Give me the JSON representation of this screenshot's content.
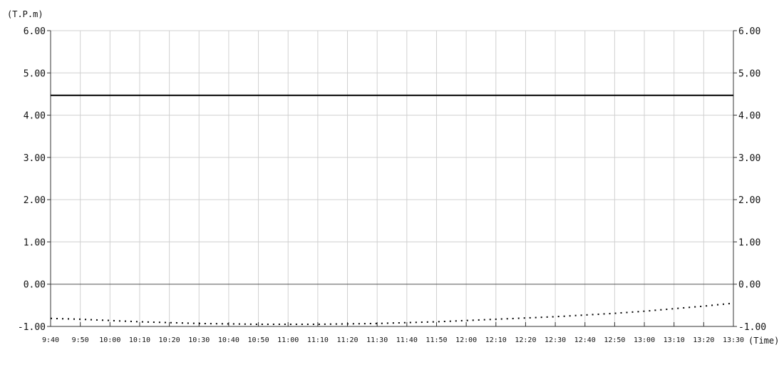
{
  "chart_data": {
    "type": "line",
    "ylabel": "(T.P.m)",
    "xlabel": "(Time)",
    "ylim": [
      -1.0,
      6.0
    ],
    "yticks": [
      "-1.00",
      "0.00",
      "1.00",
      "2.00",
      "3.00",
      "4.00",
      "5.00",
      "6.00"
    ],
    "yticks_values": [
      -1,
      0,
      1,
      2,
      3,
      4,
      5,
      6
    ],
    "x": [
      "9:40",
      "9:50",
      "10:00",
      "10:10",
      "10:20",
      "10:30",
      "10:40",
      "10:50",
      "11:00",
      "11:10",
      "11:20",
      "11:30",
      "11:40",
      "11:50",
      "12:00",
      "12:10",
      "12:20",
      "12:30",
      "12:40",
      "12:50",
      "13:00",
      "13:10",
      "13:20",
      "13:30"
    ],
    "grid": true,
    "series": [
      {
        "style": "solid",
        "color": "#000000",
        "values": [
          4.47,
          4.47,
          4.47,
          4.47,
          4.47,
          4.47,
          4.47,
          4.47,
          4.47,
          4.47,
          4.47,
          4.47,
          4.47,
          4.47,
          4.47,
          4.47,
          4.47,
          4.47,
          4.47,
          4.47,
          4.47,
          4.47,
          4.47,
          4.47
        ]
      },
      {
        "style": "dotted",
        "color": "#000000",
        "values": [
          -0.81,
          -0.83,
          -0.86,
          -0.89,
          -0.91,
          -0.93,
          -0.94,
          -0.95,
          -0.95,
          -0.95,
          -0.94,
          -0.93,
          -0.91,
          -0.89,
          -0.86,
          -0.83,
          -0.8,
          -0.77,
          -0.73,
          -0.69,
          -0.64,
          -0.58,
          -0.52,
          -0.45
        ]
      }
    ]
  }
}
